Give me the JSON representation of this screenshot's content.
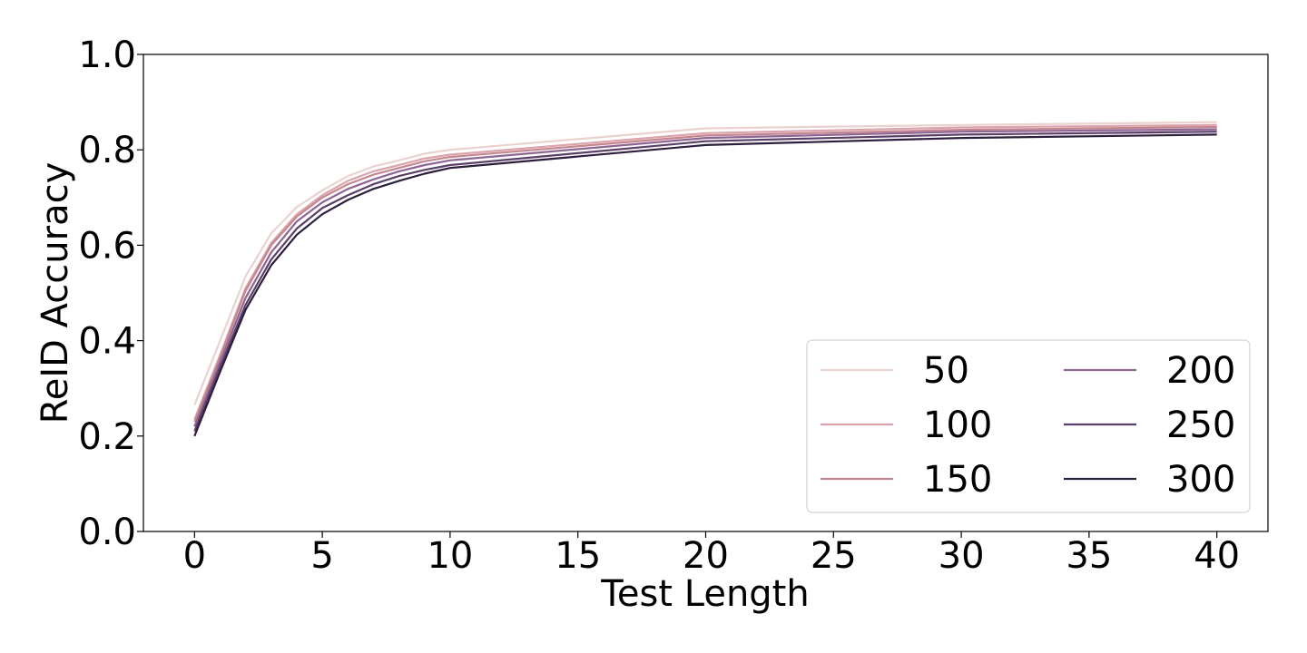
{
  "chart_data": {
    "type": "line",
    "xlabel": "Test Length",
    "ylabel": "ReID Accuracy",
    "xlim": [
      -2,
      42
    ],
    "ylim": [
      0.0,
      1.0
    ],
    "xticks": [
      0,
      5,
      10,
      15,
      20,
      25,
      30,
      35,
      40
    ],
    "yticks": [
      0.0,
      0.2,
      0.4,
      0.6,
      0.8,
      1.0
    ],
    "xtick_labels": [
      "0",
      "5",
      "10",
      "15",
      "20",
      "25",
      "30",
      "35",
      "40"
    ],
    "ytick_labels": [
      "0.0",
      "0.2",
      "0.4",
      "0.6",
      "0.8",
      "1.0"
    ],
    "grid": false,
    "legend": {
      "placement": "lower-right",
      "columns": 2
    },
    "x": [
      0,
      1,
      2,
      3,
      4,
      5,
      6,
      7,
      8,
      9,
      10,
      20,
      30,
      40
    ],
    "series": [
      {
        "name": "50",
        "color": "#ead2cf",
        "values": [
          0.265,
          0.4,
          0.535,
          0.625,
          0.68,
          0.715,
          0.745,
          0.765,
          0.778,
          0.792,
          0.8,
          0.845,
          0.852,
          0.858
        ]
      },
      {
        "name": "100",
        "color": "#dca3ab",
        "values": [
          0.235,
          0.37,
          0.51,
          0.605,
          0.665,
          0.705,
          0.735,
          0.755,
          0.768,
          0.782,
          0.79,
          0.835,
          0.847,
          0.852
        ]
      },
      {
        "name": "150",
        "color": "#c4868f",
        "values": [
          0.23,
          0.365,
          0.505,
          0.6,
          0.66,
          0.7,
          0.728,
          0.748,
          0.762,
          0.776,
          0.785,
          0.83,
          0.842,
          0.848
        ]
      },
      {
        "name": "200",
        "color": "#8e6593",
        "values": [
          0.22,
          0.355,
          0.49,
          0.585,
          0.65,
          0.69,
          0.718,
          0.738,
          0.755,
          0.768,
          0.778,
          0.825,
          0.838,
          0.843
        ]
      },
      {
        "name": "250",
        "color": "#5b3f69",
        "values": [
          0.21,
          0.345,
          0.475,
          0.57,
          0.635,
          0.678,
          0.705,
          0.728,
          0.745,
          0.758,
          0.768,
          0.818,
          0.832,
          0.838
        ]
      },
      {
        "name": "300",
        "color": "#2d1e3e",
        "values": [
          0.2,
          0.335,
          0.465,
          0.558,
          0.622,
          0.665,
          0.695,
          0.718,
          0.735,
          0.75,
          0.762,
          0.81,
          0.825,
          0.832
        ]
      }
    ]
  }
}
